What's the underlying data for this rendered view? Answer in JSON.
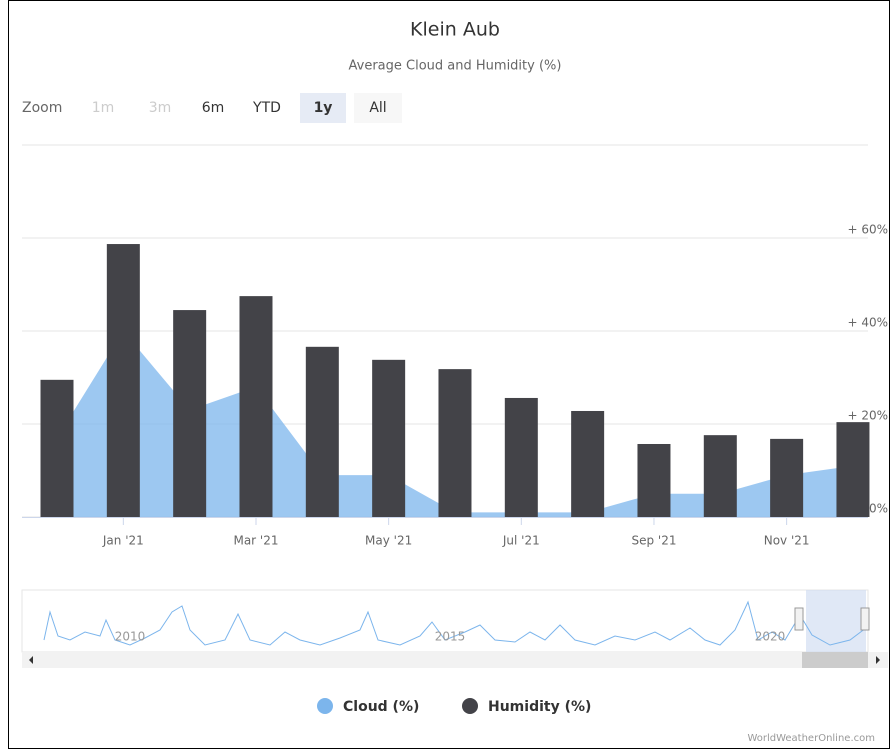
{
  "zoom": {
    "label": "Zoom",
    "buttons": [
      "1m",
      "3m",
      "6m",
      "YTD",
      "1y",
      "All"
    ]
  },
  "navigator": {
    "labels": [
      "2010",
      "2015",
      "2020"
    ]
  },
  "credit": "WorldWeatherOnline.com",
  "chart_data": {
    "type": "bar",
    "title": "Klein Aub",
    "subtitle": "Average Cloud and Humidity (%)",
    "categories": [
      null,
      "Jan '21",
      null,
      "Mar '21",
      null,
      "May '21",
      null,
      "Jul '21",
      null,
      "Sep '21",
      null,
      "Nov '21",
      null
    ],
    "series": [
      {
        "name": "Cloud (%)",
        "type": "area",
        "color": "#7cb5ec",
        "values": [
          17,
          40,
          23,
          28,
          9,
          9,
          1,
          1,
          1,
          5,
          5,
          9,
          11
        ]
      },
      {
        "name": "Humidity (%)",
        "type": "bar",
        "color": "#434348",
        "values": [
          29.5,
          58.7,
          44.5,
          47.5,
          36.6,
          33.8,
          31.8,
          25.6,
          22.8,
          15.7,
          17.6,
          16.8,
          20.4
        ]
      }
    ],
    "ylim": [
      0,
      80
    ],
    "yticks": [
      {
        "value": 0,
        "label": "0%"
      },
      {
        "value": 20,
        "label": "+ 20%"
      },
      {
        "value": 40,
        "label": "+ 40%"
      },
      {
        "value": 60,
        "label": "+ 60%"
      }
    ],
    "grid": true
  }
}
